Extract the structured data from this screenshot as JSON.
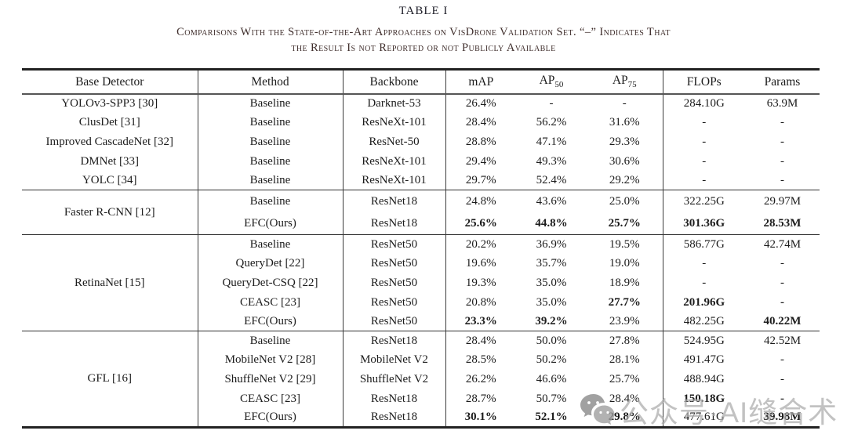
{
  "title": "TABLE I",
  "caption": {
    "line1": "Comparisons With the State-of-the-Art Approaches on VisDrone Validation Set. “–” Indicates That",
    "line2": "the Result Is not Reported or not Publicly Available"
  },
  "table": {
    "columns": [
      {
        "key": "detector",
        "label": "Base Detector"
      },
      {
        "key": "method",
        "label": "Method"
      },
      {
        "key": "backbone",
        "label": "Backbone"
      },
      {
        "key": "map",
        "label": "mAP"
      },
      {
        "key": "ap50",
        "label": "AP",
        "sub": "50"
      },
      {
        "key": "ap75",
        "label": "AP",
        "sub": "75"
      },
      {
        "key": "flops",
        "label": "FLOPs"
      },
      {
        "key": "params",
        "label": "Params"
      }
    ],
    "groups": [
      {
        "rows": [
          {
            "detector": "YOLOv3-SPP3 [30]",
            "method": "Baseline",
            "backbone": "Darknet-53",
            "map": "26.4%",
            "ap50": "-",
            "ap75": "-",
            "flops": "284.10G",
            "params": "63.9M",
            "bold": []
          },
          {
            "detector": "ClusDet [31]",
            "method": "Baseline",
            "backbone": "ResNeXt-101",
            "map": "28.4%",
            "ap50": "56.2%",
            "ap75": "31.6%",
            "flops": "-",
            "params": "-",
            "bold": []
          },
          {
            "detector": "Improved CascadeNet [32]",
            "method": "Baseline",
            "backbone": "ResNet-50",
            "map": "28.8%",
            "ap50": "47.1%",
            "ap75": "29.3%",
            "flops": "-",
            "params": "-",
            "bold": []
          },
          {
            "detector": "DMNet [33]",
            "method": "Baseline",
            "backbone": "ResNeXt-101",
            "map": "29.4%",
            "ap50": "49.3%",
            "ap75": "30.6%",
            "flops": "-",
            "params": "-",
            "bold": []
          },
          {
            "detector": "YOLC [34]",
            "method": "Baseline",
            "backbone": "ResNeXt-101",
            "map": "29.7%",
            "ap50": "52.4%",
            "ap75": "29.2%",
            "flops": "-",
            "params": "-",
            "bold": []
          }
        ]
      },
      {
        "detector": "Faster R-CNN [12]",
        "rows": [
          {
            "method": "Baseline",
            "backbone": "ResNet18",
            "map": "24.8%",
            "ap50": "43.6%",
            "ap75": "25.0%",
            "flops": "322.25G",
            "params": "29.97M",
            "bold": []
          },
          {
            "method": "EFC(Ours)",
            "backbone": "ResNet18",
            "map": "25.6%",
            "ap50": "44.8%",
            "ap75": "25.7%",
            "flops": "301.36G",
            "params": "28.53M",
            "bold": [
              "map",
              "ap50",
              "ap75",
              "flops",
              "params"
            ]
          }
        ]
      },
      {
        "detector": "RetinaNet [15]",
        "rows": [
          {
            "method": "Baseline",
            "backbone": "ResNet50",
            "map": "20.2%",
            "ap50": "36.9%",
            "ap75": "19.5%",
            "flops": "586.77G",
            "params": "42.74M",
            "bold": []
          },
          {
            "method": "QueryDet [22]",
            "backbone": "ResNet50",
            "map": "19.6%",
            "ap50": "35.7%",
            "ap75": "19.0%",
            "flops": "-",
            "params": "-",
            "bold": []
          },
          {
            "method": "QueryDet-CSQ [22]",
            "backbone": "ResNet50",
            "map": "19.3%",
            "ap50": "35.0%",
            "ap75": "18.9%",
            "flops": "-",
            "params": "-",
            "bold": []
          },
          {
            "method": "CEASC [23]",
            "backbone": "ResNet50",
            "map": "20.8%",
            "ap50": "35.0%",
            "ap75": "27.7%",
            "flops": "201.96G",
            "params": "-",
            "bold": [
              "ap75",
              "flops",
              "params"
            ]
          },
          {
            "method": "EFC(Ours)",
            "backbone": "ResNet50",
            "map": "23.3%",
            "ap50": "39.2%",
            "ap75": "23.9%",
            "flops": "482.25G",
            "params": "40.22M",
            "bold": [
              "map",
              "ap50",
              "params"
            ]
          }
        ]
      },
      {
        "detector": "GFL [16]",
        "rows": [
          {
            "method": "Baseline",
            "backbone": "ResNet18",
            "map": "28.4%",
            "ap50": "50.0%",
            "ap75": "27.8%",
            "flops": "524.95G",
            "params": "42.52M",
            "bold": []
          },
          {
            "method": "MobileNet V2 [28]",
            "backbone": "MobileNet V2",
            "map": "28.5%",
            "ap50": "50.2%",
            "ap75": "28.1%",
            "flops": "491.47G",
            "params": "-",
            "bold": []
          },
          {
            "method": "ShuffleNet V2 [29]",
            "backbone": "ShuffleNet V2",
            "map": "26.2%",
            "ap50": "46.6%",
            "ap75": "25.7%",
            "flops": "488.94G",
            "params": "-",
            "bold": []
          },
          {
            "method": "CEASC [23]",
            "backbone": "ResNet18",
            "map": "28.7%",
            "ap50": "50.7%",
            "ap75": "28.4%",
            "flops": "150.18G",
            "params": "-",
            "bold": [
              "flops",
              "params"
            ]
          },
          {
            "method": "EFC(Ours)",
            "backbone": "ResNet18",
            "map": "30.1%",
            "ap50": "52.1%",
            "ap75": "29.8%",
            "flops": "477.61G",
            "params": "39.98M",
            "bold": [
              "map",
              "ap50",
              "ap75",
              "params"
            ]
          }
        ]
      }
    ]
  },
  "watermark": {
    "icon": "wechat-icon",
    "text": "公众号·AI缝合术",
    "icon_color": "#8a8a8a",
    "text_color": "#ababab"
  }
}
